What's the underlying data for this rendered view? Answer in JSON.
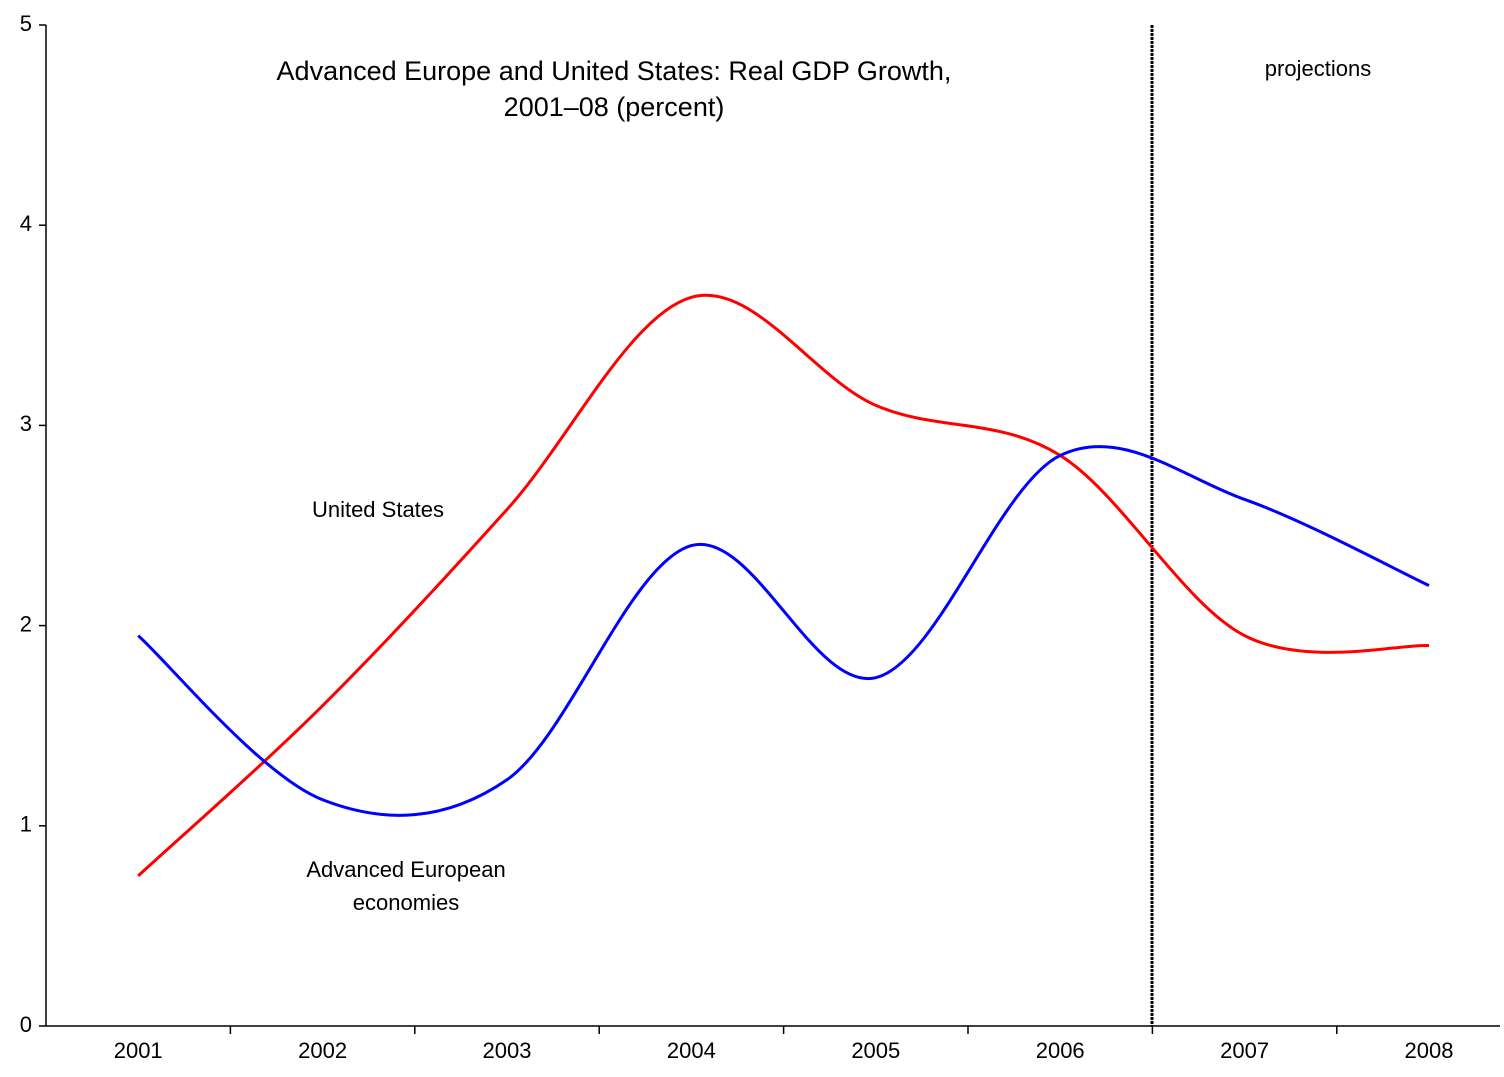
{
  "chart_data": {
    "type": "line",
    "title": [
      "Advanced Europe and United States: Real GDP Growth,",
      "2001–08 (percent)"
    ],
    "annotation": "projections",
    "categories": [
      "2001",
      "2002",
      "2003",
      "2004",
      "2005",
      "2006",
      "2007",
      "2008"
    ],
    "series": [
      {
        "name": "United States",
        "color": "#ff0000",
        "values": [
          0.75,
          1.6,
          2.58,
          3.64,
          3.1,
          2.85,
          1.95,
          1.9
        ]
      },
      {
        "name": "Advanced European economies",
        "color": "#0000ff",
        "values": [
          1.95,
          1.13,
          1.23,
          2.4,
          1.74,
          2.85,
          2.63,
          2.2
        ]
      }
    ],
    "ylim": [
      0,
      5
    ],
    "yticks": [
      0,
      1,
      2,
      3,
      4,
      5
    ],
    "grid": false
  }
}
